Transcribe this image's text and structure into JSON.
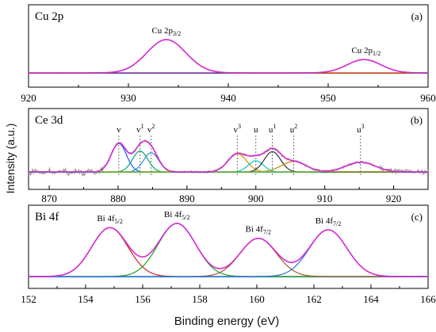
{
  "figure": {
    "ylabel": "Intensity (a.u.)",
    "xlabel": "Binding energy (eV)"
  },
  "colors": {
    "raw": "#9a9a9a",
    "envelope": "#d62bd6",
    "baseline_a": "#00cc00",
    "cu32": "#ff1a1a",
    "cu12": "#9900cc",
    "ce_v": "#1a53ff",
    "ce_v1": "#00a86b",
    "ce_v2": "#2a8fbf",
    "ce_v3": "#d98c00",
    "ce_u": "#00c8c8",
    "ce_u1": "#333333",
    "ce_u2": "#b8860b",
    "ce_u3": "#8fbf2f",
    "ce_baseline": "#00cccc",
    "bi1": "#d02020",
    "bi2": "#20a020",
    "bi3": "#a05a2a",
    "bi4": "#2a6fe0",
    "bi_baseline": "#20c0e0"
  },
  "chart_data": [
    {
      "type": "line",
      "panel_tag": "(a)",
      "element": "Cu 2p",
      "xlim": [
        920,
        960
      ],
      "xticks": [
        920,
        930,
        940,
        950,
        960
      ],
      "ylim": [
        0,
        1.1
      ],
      "series": [
        {
          "component": "Cu 2p3/2",
          "peak": {
            "center": 933.8,
            "height": 1.0,
            "fwhm": 4.6
          }
        },
        {
          "component": "Cu 2p1/2",
          "peak": {
            "center": 953.6,
            "height": 0.4,
            "fwhm": 4.0
          }
        }
      ],
      "annotations": [
        {
          "main": "Cu 2p",
          "sub": "3/2",
          "x": 933.8
        },
        {
          "main": "Cu 2p",
          "sub": "1/2",
          "x": 953.8
        }
      ]
    },
    {
      "type": "line",
      "panel_tag": "(b)",
      "element": "Ce 3d",
      "xlim": [
        867,
        925
      ],
      "xticks": [
        870,
        880,
        890,
        900,
        910,
        920
      ],
      "ylim": [
        -0.1,
        1.15
      ],
      "series": [
        {
          "component": "v",
          "peak": {
            "center": 880.1,
            "height": 0.82,
            "fwhm": 2.6
          }
        },
        {
          "component": "v1",
          "peak": {
            "center": 883.2,
            "height": 0.6,
            "fwhm": 2.6
          }
        },
        {
          "component": "v2",
          "peak": {
            "center": 884.8,
            "height": 0.55,
            "fwhm": 2.6
          }
        },
        {
          "component": "v3",
          "peak": {
            "center": 897.3,
            "height": 0.52,
            "fwhm": 3.2
          }
        },
        {
          "component": "u",
          "peak": {
            "center": 900.0,
            "height": 0.32,
            "fwhm": 2.6
          }
        },
        {
          "component": "u1",
          "peak": {
            "center": 902.4,
            "height": 0.58,
            "fwhm": 2.8
          }
        },
        {
          "component": "u2",
          "peak": {
            "center": 905.5,
            "height": 0.3,
            "fwhm": 4.2
          }
        },
        {
          "component": "u3",
          "peak": {
            "center": 915.2,
            "height": 0.28,
            "fwhm": 5.0
          }
        }
      ],
      "markers": [
        {
          "main": "v",
          "sup": "",
          "x": 880.1
        },
        {
          "main": "v",
          "sup": "1",
          "x": 883.2
        },
        {
          "main": "v",
          "sup": "2",
          "x": 884.8
        },
        {
          "main": "v",
          "sup": "3",
          "x": 897.3
        },
        {
          "main": "u",
          "sup": "",
          "x": 900.0
        },
        {
          "main": "u",
          "sup": "1",
          "x": 902.4
        },
        {
          "main": "u",
          "sup": "2",
          "x": 905.5
        },
        {
          "main": "u",
          "sup": "3",
          "x": 915.2
        }
      ]
    },
    {
      "type": "line",
      "panel_tag": "(c)",
      "element": "Bi 4f",
      "xlim": [
        152,
        166
      ],
      "xticks": [
        152,
        154,
        156,
        158,
        160,
        162,
        164,
        166
      ],
      "ylim": [
        0,
        1.12
      ],
      "series": [
        {
          "component": "Bi 4f5/2",
          "peak": {
            "center": 154.85,
            "height": 0.92,
            "fwhm": 1.5
          }
        },
        {
          "component": "Bi 4f5/2",
          "peak": {
            "center": 157.2,
            "height": 1.0,
            "fwhm": 1.55
          }
        },
        {
          "component": "Bi 4f7/2",
          "peak": {
            "center": 160.05,
            "height": 0.72,
            "fwhm": 1.5
          }
        },
        {
          "component": "Bi 4f7/2",
          "peak": {
            "center": 162.5,
            "height": 0.88,
            "fwhm": 1.55
          }
        }
      ],
      "annotations": [
        {
          "main": "Bi 4f",
          "sub": "5/2",
          "x": 154.85
        },
        {
          "main": "Bi 4f",
          "sub": "5/2",
          "x": 157.2
        },
        {
          "main": "Bi 4f",
          "sub": "7/2",
          "x": 160.05
        },
        {
          "main": "Bi 4f",
          "sub": "7/2",
          "x": 162.5
        }
      ]
    }
  ]
}
